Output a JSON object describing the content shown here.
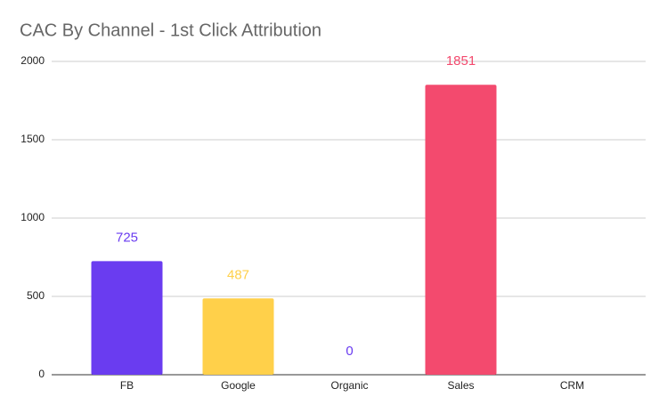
{
  "chart_data": {
    "type": "bar",
    "title": "CAC By Channel - 1st Click Attribution",
    "categories": [
      "FB",
      "Google",
      "Organic",
      "Sales",
      "CRM"
    ],
    "values": [
      725,
      487,
      0,
      1851,
      null
    ],
    "colors": [
      "#6a3cf0",
      "#ffd04a",
      "#6a3cf0",
      "#f34a6e",
      null
    ],
    "ylim": [
      0,
      2000
    ],
    "yticks": [
      0,
      500,
      1000,
      1500,
      2000
    ],
    "grid": true
  }
}
